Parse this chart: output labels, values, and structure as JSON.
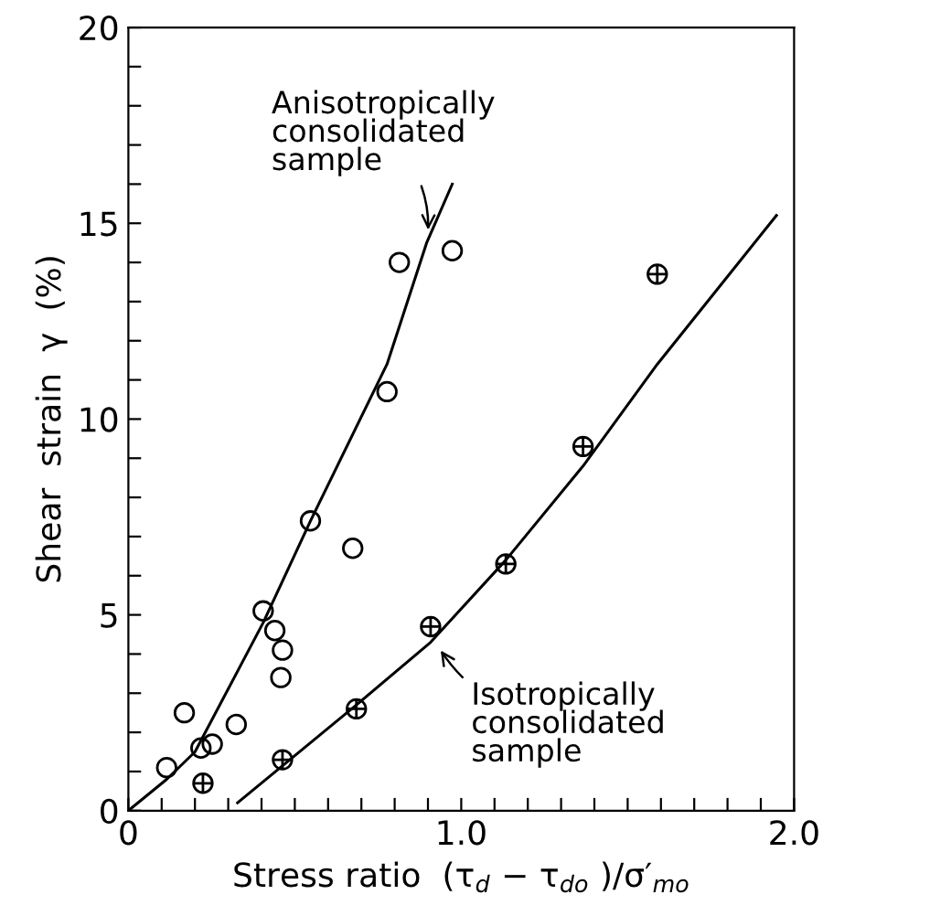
{
  "chart_data": {
    "type": "scatter",
    "xlabel": "Stress ratio  (τ$_{d}$ − τ$_{do}$ )/σ′$_{mo}$",
    "ylabel": "Shear  strain  γ  (%)",
    "xlim": [
      0,
      2
    ],
    "ylim": [
      0,
      20
    ],
    "xticks": [
      0,
      {
        "value": 0.1,
        "label": null
      },
      {
        "value": 0.2,
        "label": null
      },
      {
        "value": 0.3,
        "label": null
      },
      {
        "value": 0.4,
        "label": null
      },
      {
        "value": 0.5,
        "label": null
      },
      {
        "value": 0.6,
        "label": null
      },
      {
        "value": 0.7,
        "label": null
      },
      {
        "value": 0.8,
        "label": null
      },
      {
        "value": 0.9,
        "label": null
      },
      {
        "value": 1,
        "label": "1.0"
      },
      {
        "value": 1.1,
        "label": null
      },
      {
        "value": 1.2,
        "label": null
      },
      {
        "value": 1.3,
        "label": null
      },
      {
        "value": 1.4,
        "label": null
      },
      {
        "value": 1.5,
        "label": null
      },
      {
        "value": 1.6,
        "label": null
      },
      {
        "value": 1.7,
        "label": null
      },
      {
        "value": 1.8,
        "label": null
      },
      {
        "value": 1.9,
        "label": null
      },
      {
        "value": 2,
        "label": "2.0"
      }
    ],
    "yticks": [
      0,
      {
        "value": 1,
        "label": null
      },
      {
        "value": 2,
        "label": null
      },
      {
        "value": 3,
        "label": null
      },
      {
        "value": 4,
        "label": null
      },
      5,
      {
        "value": 6,
        "label": null
      },
      {
        "value": 7,
        "label": null
      },
      {
        "value": 8,
        "label": null
      },
      {
        "value": 9,
        "label": null
      },
      10,
      {
        "value": 11,
        "label": null
      },
      {
        "value": 12,
        "label": null
      },
      {
        "value": 13,
        "label": null
      },
      {
        "value": 14,
        "label": null
      },
      15,
      {
        "value": 16,
        "label": null
      },
      {
        "value": 17,
        "label": null
      },
      {
        "value": 18,
        "label": null
      },
      {
        "value": 19,
        "label": null
      },
      20
    ],
    "grid": false,
    "legend": false,
    "series": [
      {
        "marker": "circle",
        "color": "#000000",
        "x": [
          0.115,
          0.168,
          0.218,
          0.252,
          0.324,
          0.405,
          0.44,
          0.463,
          0.458,
          0.547,
          0.674,
          0.777,
          0.814,
          0.973
        ],
        "values": [
          1.1,
          2.5,
          1.6,
          1.7,
          2.2,
          5.1,
          4.6,
          4.1,
          3.4,
          7.4,
          6.7,
          10.7,
          14.0,
          14.3
        ]
      },
      {
        "marker": "cross",
        "color": "#000000",
        "x": [
          0.224,
          0.463,
          0.685,
          0.908,
          1.134,
          1.366,
          1.589
        ],
        "values": [
          0.7,
          1.3,
          2.6,
          4.7,
          6.3,
          9.3,
          13.7
        ]
      },
      {
        "type": "line",
        "marker": "none",
        "line_style": "solid",
        "color": "#000000",
        "x": [
          0,
          0.115,
          0.2,
          0.405,
          0.547,
          0.777,
          0.896,
          0.973
        ],
        "values": [
          0,
          0.8,
          1.5,
          4.8,
          7.4,
          11.4,
          14.5,
          16.0
        ]
      },
      {
        "type": "line",
        "marker": "none",
        "line_style": "solid",
        "color": "#000000",
        "x": [
          0.328,
          0.685,
          0.908,
          1.134,
          1.366,
          1.589,
          1.947
        ],
        "values": [
          0.2,
          2.7,
          4.3,
          6.4,
          8.8,
          11.4,
          15.2
        ]
      }
    ],
    "annotations": [
      {
        "text": "Anisotropically\nconsolidated\nsample",
        "x": 0.9,
        "y": 14.7
      },
      {
        "text": "Isotropically\nconsolidated\nsample",
        "x": 0.93,
        "y": 4.2
      }
    ]
  }
}
